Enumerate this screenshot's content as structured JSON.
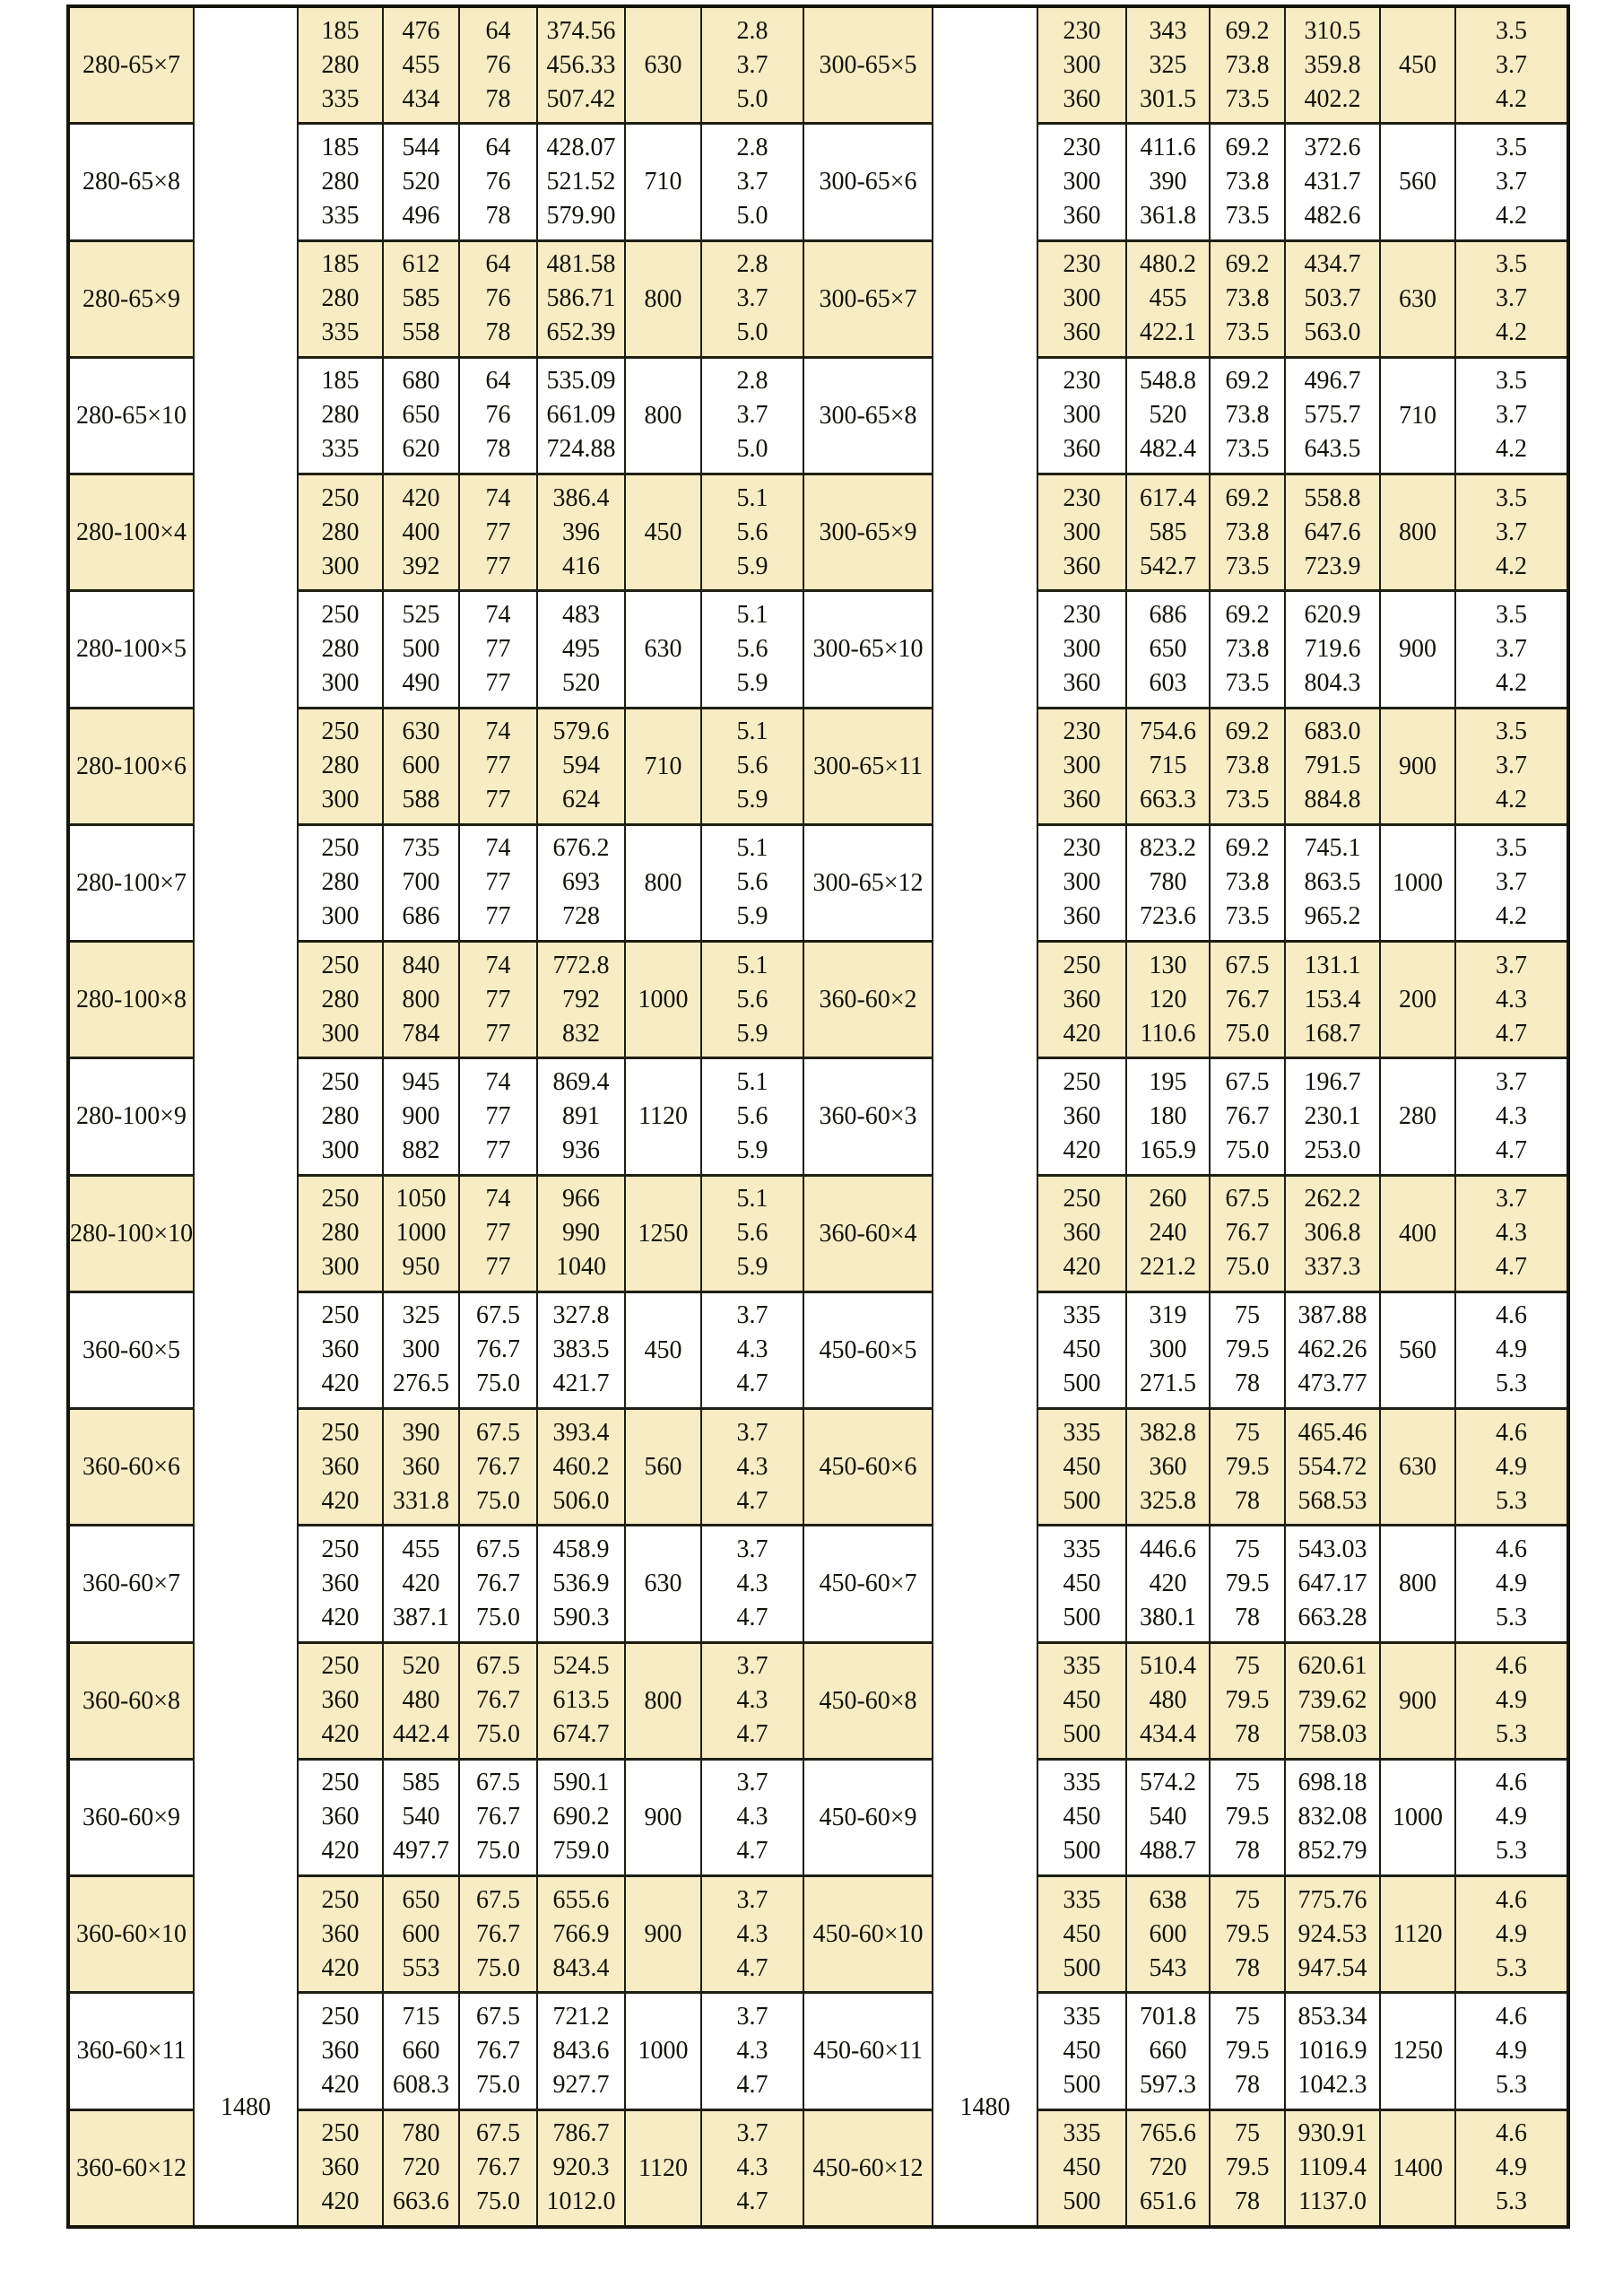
{
  "colors": {
    "row_highlight": "#f7ecc4",
    "row_plain": "#ffffff",
    "border": "#1e1e13",
    "text": "#121208"
  },
  "table": {
    "speed_left": "1480",
    "speed_right": "1480",
    "rows": [
      {
        "left": {
          "model": "280-65×7",
          "flow": "185\n280\n335",
          "head": "476\n455\n434",
          "eff": "64\n76\n78",
          "power": "374.56\n456.33\n507.42",
          "motor": "630",
          "npsh": "2.8\n3.7\n5.0"
        },
        "right": {
          "model": "300-65×5",
          "flow": "230\n300\n360",
          "head": "343\n325\n301.5",
          "eff": "69.2\n73.8\n73.5",
          "power": "310.5\n359.8\n402.2",
          "motor": "450",
          "npsh": "3.5\n3.7\n4.2"
        }
      },
      {
        "left": {
          "model": "280-65×8",
          "flow": "185\n280\n335",
          "head": "544\n520\n496",
          "eff": "64\n76\n78",
          "power": "428.07\n521.52\n579.90",
          "motor": "710",
          "npsh": "2.8\n3.7\n5.0"
        },
        "right": {
          "model": "300-65×6",
          "flow": "230\n300\n360",
          "head": "411.6\n390\n361.8",
          "eff": "69.2\n73.8\n73.5",
          "power": "372.6\n431.7\n482.6",
          "motor": "560",
          "npsh": "3.5\n3.7\n4.2"
        }
      },
      {
        "left": {
          "model": "280-65×9",
          "flow": "185\n280\n335",
          "head": "612\n585\n558",
          "eff": "64\n76\n78",
          "power": "481.58\n586.71\n652.39",
          "motor": "800",
          "npsh": "2.8\n3.7\n5.0"
        },
        "right": {
          "model": "300-65×7",
          "flow": "230\n300\n360",
          "head": "480.2\n455\n422.1",
          "eff": "69.2\n73.8\n73.5",
          "power": "434.7\n503.7\n563.0",
          "motor": "630",
          "npsh": "3.5\n3.7\n4.2"
        }
      },
      {
        "left": {
          "model": "280-65×10",
          "flow": "185\n280\n335",
          "head": "680\n650\n620",
          "eff": "64\n76\n78",
          "power": "535.09\n661.09\n724.88",
          "motor": "800",
          "npsh": "2.8\n3.7\n5.0"
        },
        "right": {
          "model": "300-65×8",
          "flow": "230\n300\n360",
          "head": "548.8\n520\n482.4",
          "eff": "69.2\n73.8\n73.5",
          "power": "496.7\n575.7\n643.5",
          "motor": "710",
          "npsh": "3.5\n3.7\n4.2"
        }
      },
      {
        "left": {
          "model": "280-100×4",
          "flow": "250\n280\n300",
          "head": "420\n400\n392",
          "eff": "74\n77\n77",
          "power": "386.4\n396\n416",
          "motor": "450",
          "npsh": "5.1\n5.6\n5.9"
        },
        "right": {
          "model": "300-65×9",
          "flow": "230\n300\n360",
          "head": "617.4\n585\n542.7",
          "eff": "69.2\n73.8\n73.5",
          "power": "558.8\n647.6\n723.9",
          "motor": "800",
          "npsh": "3.5\n3.7\n4.2"
        }
      },
      {
        "left": {
          "model": "280-100×5",
          "flow": "250\n280\n300",
          "head": "525\n500\n490",
          "eff": "74\n77\n77",
          "power": "483\n495\n520",
          "motor": "630",
          "npsh": "5.1\n5.6\n5.9"
        },
        "right": {
          "model": "300-65×10",
          "flow": "230\n300\n360",
          "head": "686\n650\n603",
          "eff": "69.2\n73.8\n73.5",
          "power": "620.9\n719.6\n804.3",
          "motor": "900",
          "npsh": "3.5\n3.7\n4.2"
        }
      },
      {
        "left": {
          "model": "280-100×6",
          "flow": "250\n280\n300",
          "head": "630\n600\n588",
          "eff": "74\n77\n77",
          "power": "579.6\n594\n624",
          "motor": "710",
          "npsh": "5.1\n5.6\n5.9"
        },
        "right": {
          "model": "300-65×11",
          "flow": "230\n300\n360",
          "head": "754.6\n715\n663.3",
          "eff": "69.2\n73.8\n73.5",
          "power": "683.0\n791.5\n884.8",
          "motor": "900",
          "npsh": "3.5\n3.7\n4.2"
        }
      },
      {
        "left": {
          "model": "280-100×7",
          "flow": "250\n280\n300",
          "head": "735\n700\n686",
          "eff": "74\n77\n77",
          "power": "676.2\n693\n728",
          "motor": "800",
          "npsh": "5.1\n5.6\n5.9"
        },
        "right": {
          "model": "300-65×12",
          "flow": "230\n300\n360",
          "head": "823.2\n780\n723.6",
          "eff": "69.2\n73.8\n73.5",
          "power": "745.1\n863.5\n965.2",
          "motor": "1000",
          "npsh": "3.5\n3.7\n4.2"
        }
      },
      {
        "left": {
          "model": "280-100×8",
          "flow": "250\n280\n300",
          "head": "840\n800\n784",
          "eff": "74\n77\n77",
          "power": "772.8\n792\n832",
          "motor": "1000",
          "npsh": "5.1\n5.6\n5.9"
        },
        "right": {
          "model": "360-60×2",
          "flow": "250\n360\n420",
          "head": "130\n120\n110.6",
          "eff": "67.5\n76.7\n75.0",
          "power": "131.1\n153.4\n168.7",
          "motor": "200",
          "npsh": "3.7\n4.3\n4.7"
        }
      },
      {
        "left": {
          "model": "280-100×9",
          "flow": "250\n280\n300",
          "head": "945\n900\n882",
          "eff": "74\n77\n77",
          "power": "869.4\n891\n936",
          "motor": "1120",
          "npsh": "5.1\n5.6\n5.9"
        },
        "right": {
          "model": "360-60×3",
          "flow": "250\n360\n420",
          "head": "195\n180\n165.9",
          "eff": "67.5\n76.7\n75.0",
          "power": "196.7\n230.1\n253.0",
          "motor": "280",
          "npsh": "3.7\n4.3\n4.7"
        }
      },
      {
        "left": {
          "model": "280-100×10",
          "flow": "250\n280\n300",
          "head": "1050\n1000\n950",
          "eff": "74\n77\n77",
          "power": "966\n990\n1040",
          "motor": "1250",
          "npsh": "5.1\n5.6\n5.9"
        },
        "right": {
          "model": "360-60×4",
          "flow": "250\n360\n420",
          "head": "260\n240\n221.2",
          "eff": "67.5\n76.7\n75.0",
          "power": "262.2\n306.8\n337.3",
          "motor": "400",
          "npsh": "3.7\n4.3\n4.7"
        }
      },
      {
        "left": {
          "model": "360-60×5",
          "flow": "250\n360\n420",
          "head": "325\n300\n276.5",
          "eff": "67.5\n76.7\n75.0",
          "power": "327.8\n383.5\n421.7",
          "motor": "450",
          "npsh": "3.7\n4.3\n4.7"
        },
        "right": {
          "model": "450-60×5",
          "flow": "335\n450\n500",
          "head": "319\n300\n271.5",
          "eff": "75\n79.5\n78",
          "power": "387.88\n462.26\n473.77",
          "motor": "560",
          "npsh": "4.6\n4.9\n5.3"
        }
      },
      {
        "left": {
          "model": "360-60×6",
          "flow": "250\n360\n420",
          "head": "390\n360\n331.8",
          "eff": "67.5\n76.7\n75.0",
          "power": "393.4\n460.2\n506.0",
          "motor": "560",
          "npsh": "3.7\n4.3\n4.7"
        },
        "right": {
          "model": "450-60×6",
          "flow": "335\n450\n500",
          "head": "382.8\n360\n325.8",
          "eff": "75\n79.5\n78",
          "power": "465.46\n554.72\n568.53",
          "motor": "630",
          "npsh": "4.6\n4.9\n5.3"
        }
      },
      {
        "left": {
          "model": "360-60×7",
          "flow": "250\n360\n420",
          "head": "455\n420\n387.1",
          "eff": "67.5\n76.7\n75.0",
          "power": "458.9\n536.9\n590.3",
          "motor": "630",
          "npsh": "3.7\n4.3\n4.7"
        },
        "right": {
          "model": "450-60×7",
          "flow": "335\n450\n500",
          "head": "446.6\n420\n380.1",
          "eff": "75\n79.5\n78",
          "power": "543.03\n647.17\n663.28",
          "motor": "800",
          "npsh": "4.6\n4.9\n5.3"
        }
      },
      {
        "left": {
          "model": "360-60×8",
          "flow": "250\n360\n420",
          "head": "520\n480\n442.4",
          "eff": "67.5\n76.7\n75.0",
          "power": "524.5\n613.5\n674.7",
          "motor": "800",
          "npsh": "3.7\n4.3\n4.7"
        },
        "right": {
          "model": "450-60×8",
          "flow": "335\n450\n500",
          "head": "510.4\n480\n434.4",
          "eff": "75\n79.5\n78",
          "power": "620.61\n739.62\n758.03",
          "motor": "900",
          "npsh": "4.6\n4.9\n5.3"
        }
      },
      {
        "left": {
          "model": "360-60×9",
          "flow": "250\n360\n420",
          "head": "585\n540\n497.7",
          "eff": "67.5\n76.7\n75.0",
          "power": "590.1\n690.2\n759.0",
          "motor": "900",
          "npsh": "3.7\n4.3\n4.7"
        },
        "right": {
          "model": "450-60×9",
          "flow": "335\n450\n500",
          "head": "574.2\n540\n488.7",
          "eff": "75\n79.5\n78",
          "power": "698.18\n832.08\n852.79",
          "motor": "1000",
          "npsh": "4.6\n4.9\n5.3"
        }
      },
      {
        "left": {
          "model": "360-60×10",
          "flow": "250\n360\n420",
          "head": "650\n600\n553",
          "eff": "67.5\n76.7\n75.0",
          "power": "655.6\n766.9\n843.4",
          "motor": "900",
          "npsh": "3.7\n4.3\n4.7"
        },
        "right": {
          "model": "450-60×10",
          "flow": "335\n450\n500",
          "head": "638\n600\n543",
          "eff": "75\n79.5\n78",
          "power": "775.76\n924.53\n947.54",
          "motor": "1120",
          "npsh": "4.6\n4.9\n5.3"
        }
      },
      {
        "left": {
          "model": "360-60×11",
          "flow": "250\n360\n420",
          "head": "715\n660\n608.3",
          "eff": "67.5\n76.7\n75.0",
          "power": "721.2\n843.6\n927.7",
          "motor": "1000",
          "npsh": "3.7\n4.3\n4.7"
        },
        "right": {
          "model": "450-60×11",
          "flow": "335\n450\n500",
          "head": "701.8\n660\n597.3",
          "eff": "75\n79.5\n78",
          "power": "853.34\n1016.9\n1042.3",
          "motor": "1250",
          "npsh": "4.6\n4.9\n5.3"
        }
      },
      {
        "left": {
          "model": "360-60×12",
          "flow": "250\n360\n420",
          "head": "780\n720\n663.6",
          "eff": "67.5\n76.7\n75.0",
          "power": "786.7\n920.3\n1012.0",
          "motor": "1120",
          "npsh": "3.7\n4.3\n4.7"
        },
        "right": {
          "model": "450-60×12",
          "flow": "335\n450\n500",
          "head": "765.6\n720\n651.6",
          "eff": "75\n79.5\n78",
          "power": "930.91\n1109.4\n1137.0",
          "motor": "1400",
          "npsh": "4.6\n4.9\n5.3"
        }
      }
    ]
  }
}
